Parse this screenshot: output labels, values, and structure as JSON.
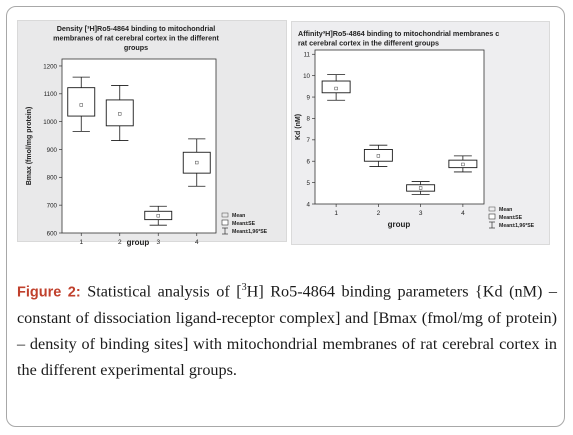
{
  "chart_data": [
    {
      "type": "boxplot",
      "title_lines": [
        "Density [³H]Ro5-4864 binding to mitochondrial",
        "membranes of rat cerebral cortex in the different",
        "groups"
      ],
      "xlabel": "group",
      "ylabel": "Bmax (fmol/mg protein)",
      "categories": [
        "1",
        "2",
        "3",
        "4"
      ],
      "yticks": [
        600,
        700,
        800,
        900,
        1000,
        1100,
        1200
      ],
      "ylim": [
        600,
        1225
      ],
      "grid": false,
      "legend_position": "bottom-right",
      "legend": [
        "Mean",
        "Mean±SE",
        "Mean±1,96*SE"
      ],
      "series": [
        {
          "group": "1",
          "mean": 1060,
          "se_low": 1020,
          "se_high": 1122,
          "ci_low": 965,
          "ci_high": 1160
        },
        {
          "group": "2",
          "mean": 1028,
          "se_low": 985,
          "se_high": 1078,
          "ci_low": 932,
          "ci_high": 1130
        },
        {
          "group": "3",
          "mean": 662,
          "se_low": 648,
          "se_high": 678,
          "ci_low": 628,
          "ci_high": 696
        },
        {
          "group": "4",
          "mean": 853,
          "se_low": 815,
          "se_high": 890,
          "ci_low": 768,
          "ci_high": 938
        }
      ]
    },
    {
      "type": "boxplot",
      "title_lines": [
        "Affinity³H]Ro5-4864 binding to mitochondrial membranes c",
        "rat cerebral cortex  in the different groups"
      ],
      "xlabel": "group",
      "ylabel": "Kd (nM)",
      "categories": [
        "1",
        "2",
        "3",
        "4"
      ],
      "yticks": [
        4,
        5,
        6,
        7,
        8,
        9,
        10,
        11
      ],
      "ylim": [
        4,
        11.2
      ],
      "grid": false,
      "legend_position": "bottom-right",
      "legend": [
        "Mean",
        "Mean±SE",
        "Mean±1,96*SE"
      ],
      "series": [
        {
          "group": "1",
          "mean": 9.4,
          "se_low": 9.2,
          "se_high": 9.75,
          "ci_low": 8.85,
          "ci_high": 10.05
        },
        {
          "group": "2",
          "mean": 6.25,
          "se_low": 6.0,
          "se_high": 6.55,
          "ci_low": 5.75,
          "ci_high": 6.75
        },
        {
          "group": "3",
          "mean": 4.75,
          "se_low": 4.6,
          "se_high": 4.9,
          "ci_low": 4.45,
          "ci_high": 5.05
        },
        {
          "group": "4",
          "mean": 5.85,
          "se_low": 5.7,
          "se_high": 6.05,
          "ci_low": 5.5,
          "ci_high": 6.25
        }
      ]
    }
  ],
  "caption": {
    "label": "Figure 2:",
    "sup": "3",
    "text_before_sup": " Statistical analysis of [",
    "text_after_sup": "H] Ro5-4864 binding parameters {Kd (nM) – constant of dissociation ligand-receptor complex] and [Bmax (fmol/mg of protein) – density of binding sites] with mitochondrial membranes of rat cerebral cortex in the different experimental groups."
  },
  "colors": {
    "box_fill": "#ffffff",
    "box_stroke": "#1a1a1a",
    "whisker": "#1a1a1a",
    "caption_label": "#c0402c"
  }
}
